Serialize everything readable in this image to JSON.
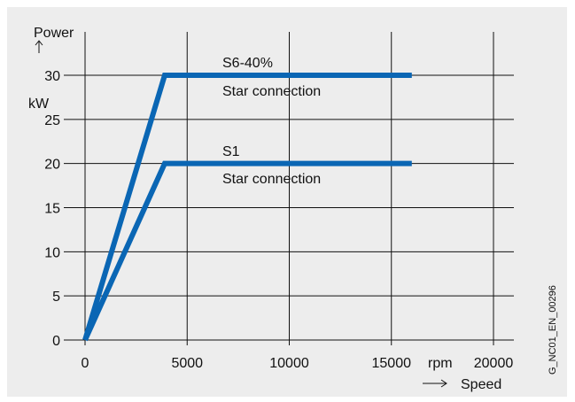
{
  "chart_data": {
    "type": "line",
    "ylabel": "Power",
    "yunit": "kW",
    "xlabel": "Speed",
    "xunit": "rpm",
    "xlim": [
      0,
      20000
    ],
    "ylim": [
      0,
      30
    ],
    "xticks": [
      0,
      5000,
      10000,
      15000,
      20000
    ],
    "yticks": [
      0,
      5,
      10,
      15,
      20,
      25,
      30
    ],
    "grid": true,
    "line_color": "#0a66b4",
    "series": [
      {
        "name": "S6-40%",
        "x": [
          0,
          3900,
          16000
        ],
        "y": [
          0,
          30,
          30
        ]
      },
      {
        "name": "S1",
        "x": [
          0,
          3900,
          16000
        ],
        "y": [
          0,
          20,
          20
        ]
      }
    ],
    "annotations": [
      {
        "label": "S6-40%",
        "sub": "Star connection"
      },
      {
        "label": "S1",
        "sub": "Star connection"
      }
    ],
    "image_code": "G_NC01_EN_00296"
  }
}
